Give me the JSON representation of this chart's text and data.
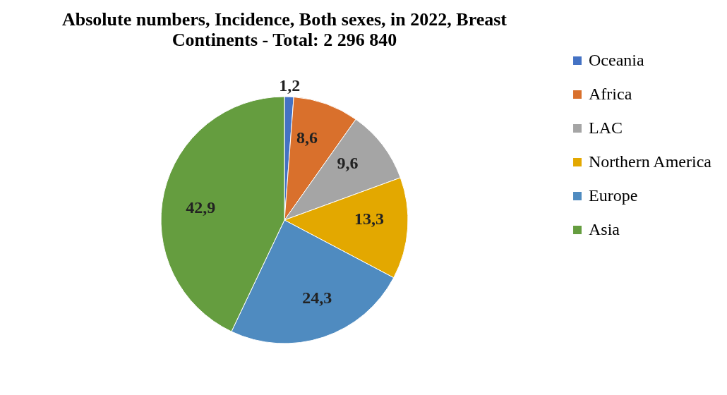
{
  "chart_data": {
    "type": "pie",
    "title": "Absolute numbers, Incidence, Both sexes, in 2022, Breast",
    "subtitle": "Continents - Total: 2 296 840",
    "categories": [
      "Oceania",
      "Africa",
      "LAC",
      "Northern America",
      "Europe",
      "Asia"
    ],
    "values": [
      1.2,
      8.6,
      9.6,
      13.3,
      24.3,
      42.9
    ],
    "colors": [
      "#4472c4",
      "#d9702c",
      "#a5a5a5",
      "#e3a800",
      "#4f8bc0",
      "#659d3f"
    ],
    "value_labels": [
      "1,2",
      "8,6",
      "9,6",
      "13,3",
      "24,3",
      "42,9"
    ],
    "legend": "right"
  }
}
